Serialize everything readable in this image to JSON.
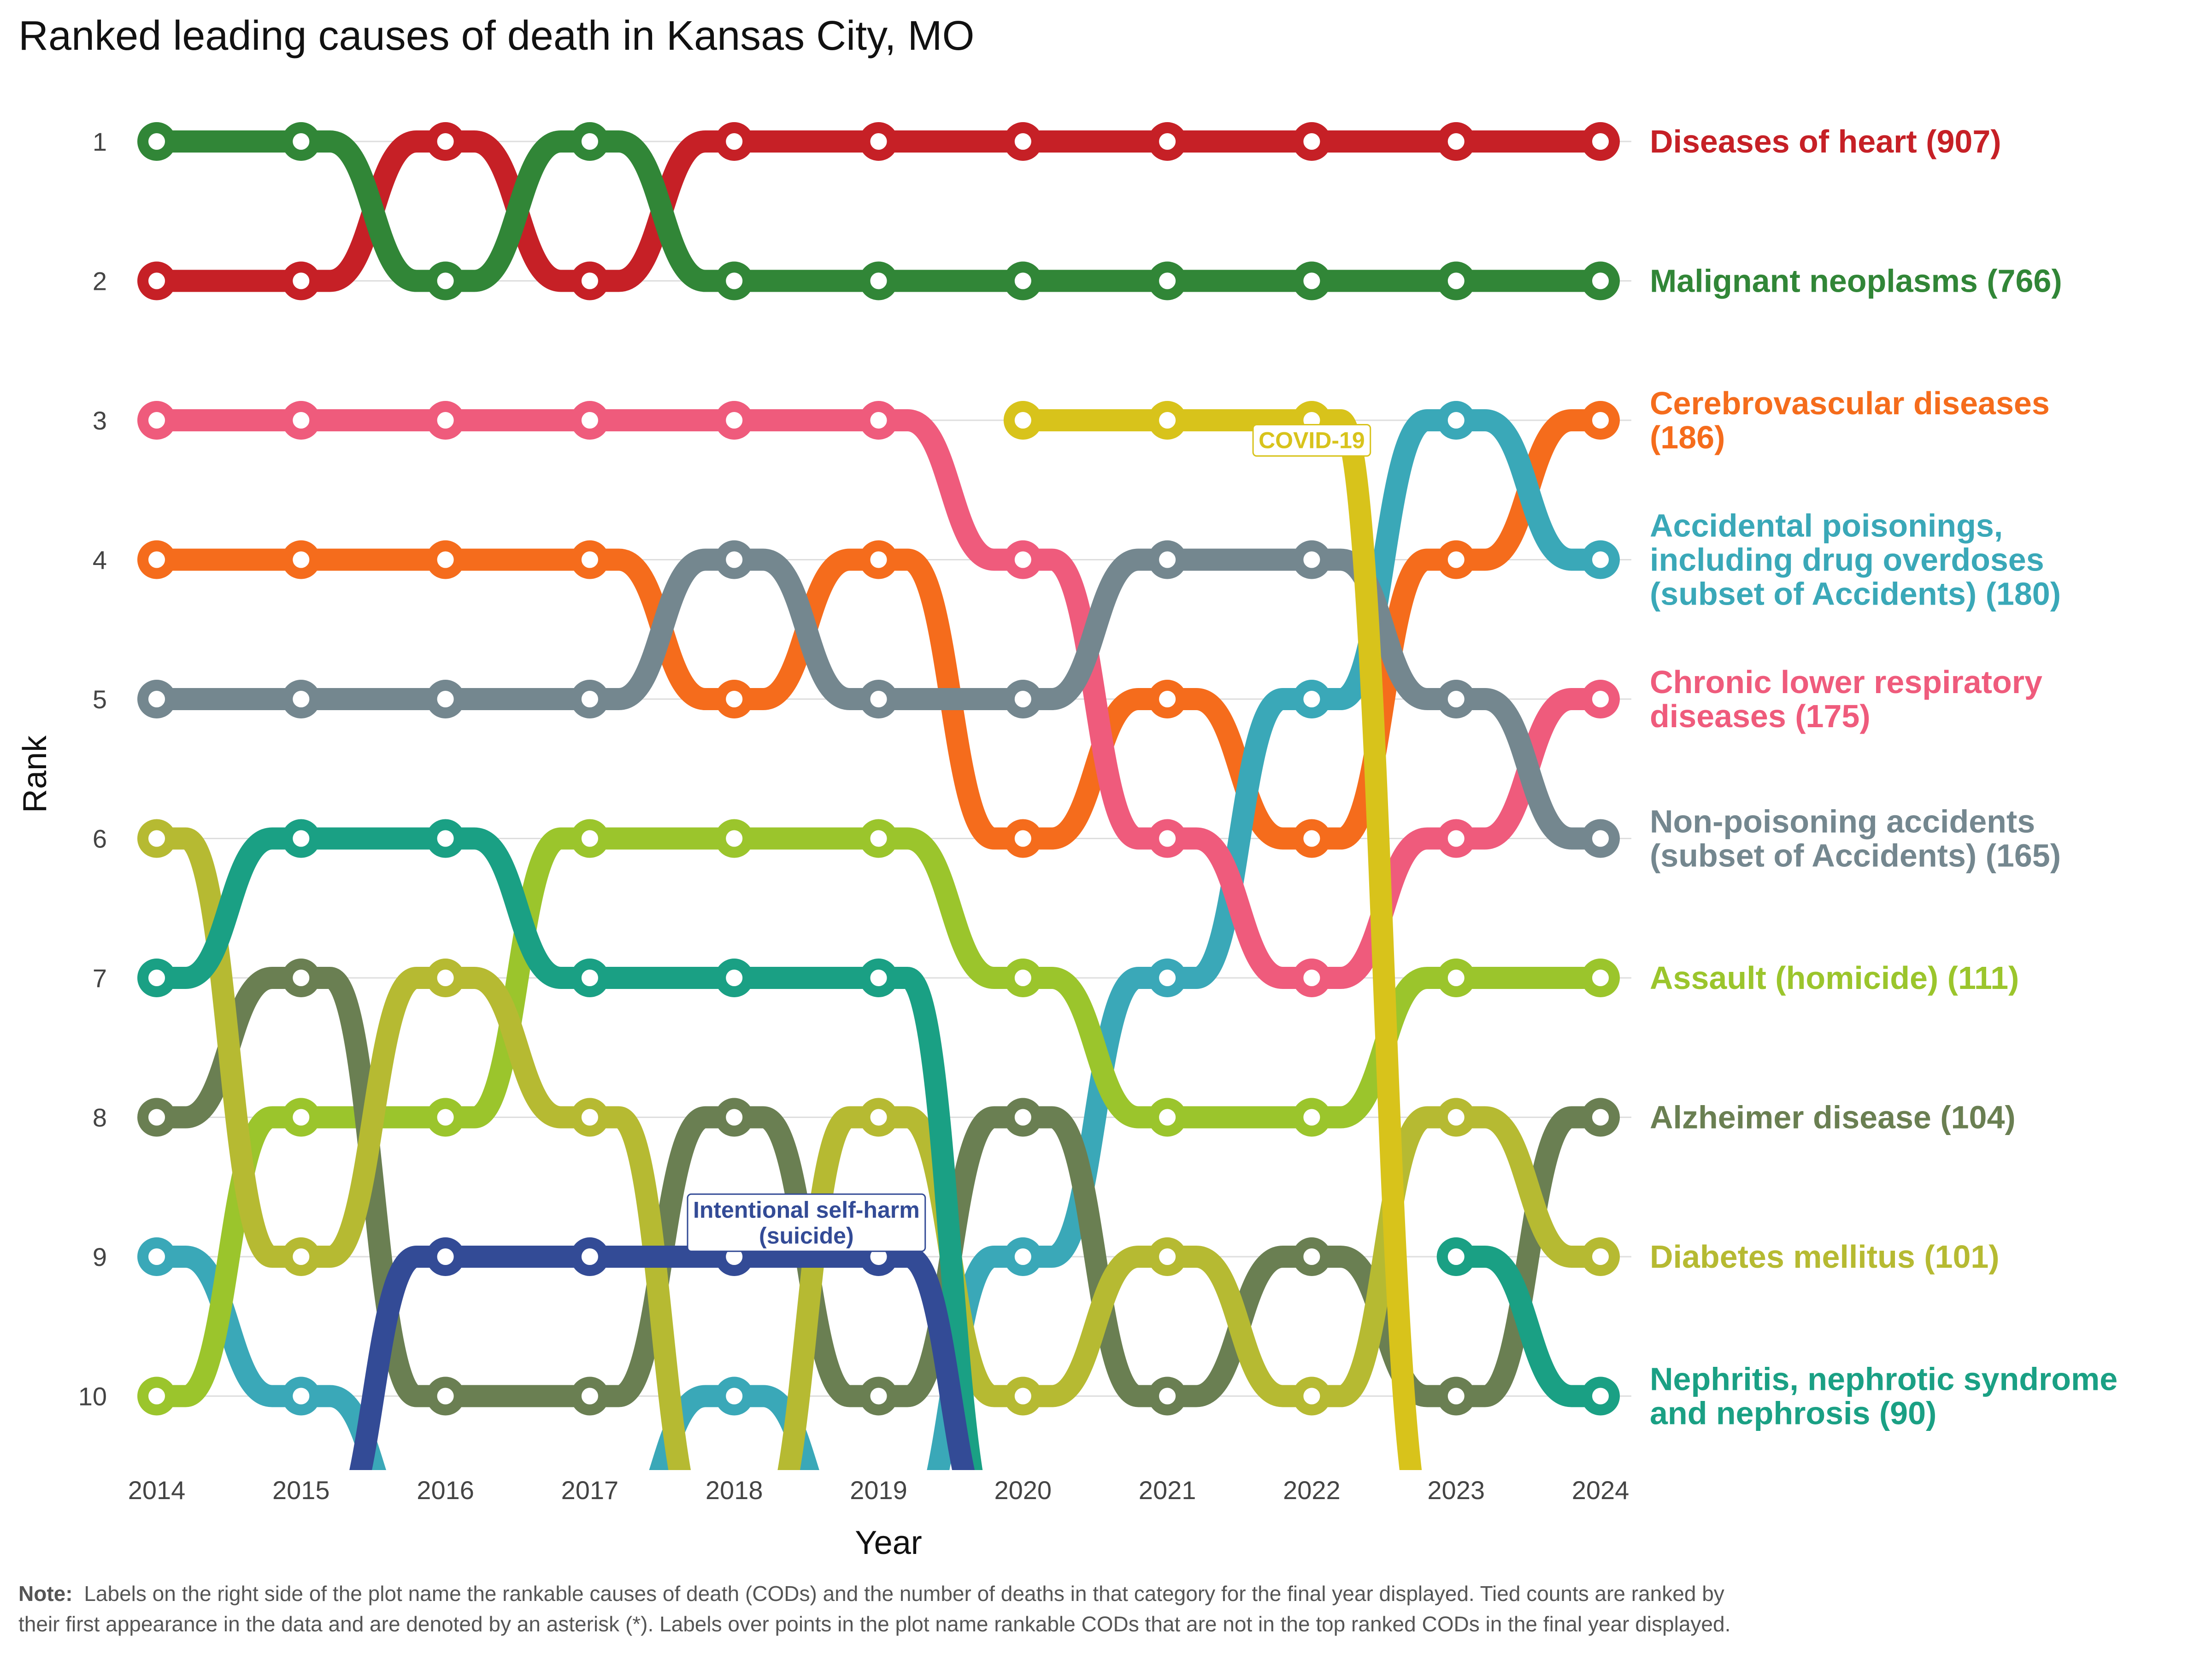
{
  "chart_data": {
    "type": "line",
    "title": "Ranked leading causes of death in Kansas City, MO",
    "xlabel": "Year",
    "ylabel": "Rank",
    "x": [
      2014,
      2015,
      2016,
      2017,
      2018,
      2019,
      2020,
      2021,
      2022,
      2023,
      2024
    ],
    "y_ticks": [
      1,
      2,
      3,
      4,
      5,
      6,
      7,
      8,
      9,
      10
    ],
    "ylim": [
      10.5,
      0.5
    ],
    "y_reversed": true,
    "grid": "horizontal",
    "series": [
      {
        "name": "Diseases of heart",
        "final_count": 907,
        "label_lines": [
          "Diseases of heart (907)"
        ],
        "color": "#c62026",
        "ranks": [
          2,
          2,
          1,
          2,
          1,
          1,
          1,
          1,
          1,
          1,
          1
        ]
      },
      {
        "name": "Malignant neoplasms",
        "final_count": 766,
        "label_lines": [
          "Malignant neoplasms (766)"
        ],
        "color": "#318637",
        "ranks": [
          1,
          1,
          2,
          1,
          2,
          2,
          2,
          2,
          2,
          2,
          2
        ]
      },
      {
        "name": "Cerebrovascular diseases",
        "final_count": 186,
        "label_lines": [
          "Cerebrovascular diseases",
          "(186)"
        ],
        "color": "#f56c1c",
        "ranks": [
          4,
          4,
          4,
          4,
          5,
          4,
          6,
          5,
          6,
          4,
          3
        ]
      },
      {
        "name": "Accidental poisonings, including drug overdoses (subset of Accidents)",
        "final_count": 180,
        "label_lines": [
          "Accidental poisonings,",
          "including drug overdoses",
          "(subset of Accidents) (180)"
        ],
        "color": "#3aa8b8",
        "ranks": [
          9,
          10,
          11,
          11,
          10,
          11,
          9,
          7,
          5,
          3,
          4
        ]
      },
      {
        "name": "Chronic lower respiratory diseases",
        "final_count": 175,
        "label_lines": [
          "Chronic lower respiratory",
          "diseases (175)"
        ],
        "color": "#ef5b7c",
        "ranks": [
          3,
          3,
          3,
          3,
          3,
          3,
          4,
          6,
          7,
          6,
          5
        ]
      },
      {
        "name": "Non-poisoning accidents (subset of Accidents)",
        "final_count": 165,
        "label_lines": [
          "Non-poisoning accidents",
          "(subset of Accidents) (165)"
        ],
        "color": "#74878f",
        "ranks": [
          5,
          5,
          5,
          5,
          4,
          5,
          5,
          4,
          4,
          5,
          6
        ]
      },
      {
        "name": "Assault (homicide)",
        "final_count": 111,
        "label_lines": [
          "Assault (homicide) (111)"
        ],
        "color": "#9bc52c",
        "ranks": [
          10,
          8,
          8,
          6,
          6,
          6,
          7,
          8,
          8,
          7,
          7
        ]
      },
      {
        "name": "Alzheimer disease",
        "final_count": 104,
        "label_lines": [
          "Alzheimer disease (104)"
        ],
        "color": "#6a7f52",
        "ranks": [
          8,
          7,
          10,
          10,
          8,
          10,
          8,
          10,
          9,
          10,
          8
        ]
      },
      {
        "name": "Diabetes mellitus",
        "final_count": 101,
        "label_lines": [
          "Diabetes mellitus (101)"
        ],
        "color": "#b6ba32",
        "ranks": [
          6,
          9,
          7,
          8,
          11,
          8,
          10,
          9,
          10,
          8,
          9
        ]
      },
      {
        "name": "Nephritis, nephrotic syndrome and nephrosis",
        "final_count": 90,
        "label_lines": [
          "Nephritis, nephrotic syndrome",
          "and nephrosis (90)"
        ],
        "color": "#1aa084",
        "ranks": [
          7,
          6,
          6,
          7,
          7,
          7,
          11,
          null,
          null,
          9,
          10
        ]
      },
      {
        "name": "Intentional self-harm (suicide)",
        "final_count": null,
        "label_lines": [],
        "color": "#334b96",
        "ranks": [
          null,
          11,
          9,
          9,
          9,
          9,
          11,
          null,
          null,
          null,
          null
        ],
        "callout_lines": [
          "Intentional self-harm",
          "(suicide)"
        ],
        "callout_year": 2018.5,
        "callout_rank": 8.72
      },
      {
        "name": "COVID-19",
        "final_count": null,
        "label_lines": [],
        "color": "#d8c31b",
        "ranks": [
          null,
          null,
          null,
          null,
          null,
          null,
          3,
          3,
          3,
          11,
          null
        ],
        "callout_lines": [
          "COVID-19"
        ],
        "callout_year": 2022,
        "callout_rank": 3.2
      }
    ]
  },
  "note": {
    "bold": "Note:",
    "lines": [
      "Labels on the right side of the plot name the rankable causes of death (CODs) and the number of deaths in that category for the final year displayed. Tied counts are ranked by",
      "their first appearance in the data and are denoted by an asterisk (*). Labels over points in the plot name rankable CODs that are not in the top ranked CODs in the final year displayed."
    ]
  }
}
